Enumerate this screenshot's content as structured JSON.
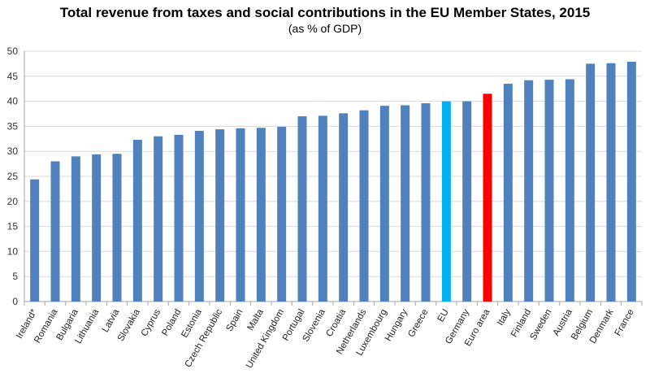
{
  "chart_data": {
    "type": "bar",
    "title": "Total revenue from taxes and social contributions in the EU Member States, 2015",
    "subtitle": "(as % of GDP)",
    "xlabel": "",
    "ylabel": "",
    "ylim": [
      0,
      50
    ],
    "yticks": [
      0,
      5,
      10,
      15,
      20,
      25,
      30,
      35,
      40,
      45,
      50
    ],
    "grid": true,
    "legend": "none",
    "categories": [
      "Ireland*",
      "Romania",
      "Bulgaria",
      "Lithuania",
      "Latvia",
      "Slovakia",
      "Cyprus",
      "Poland",
      "Estonia",
      "Czech Republic",
      "Spain",
      "Malta",
      "United Kingdom",
      "Portugal",
      "Slovenia",
      "Croatia",
      "Netherlands",
      "Luxembourg",
      "Hungary",
      "Greece",
      "EU",
      "Germany",
      "Euro area",
      "Italy",
      "Finland",
      "Sweden",
      "Austria",
      "Belgium",
      "Denmark",
      "France"
    ],
    "values": [
      24.4,
      28.0,
      29.0,
      29.4,
      29.5,
      32.3,
      33.0,
      33.3,
      34.1,
      34.4,
      34.6,
      34.7,
      34.9,
      37.0,
      37.1,
      37.6,
      38.2,
      39.1,
      39.2,
      39.6,
      40.0,
      40.0,
      41.5,
      43.5,
      44.2,
      44.3,
      44.4,
      47.5,
      47.6,
      47.9
    ],
    "colors": {
      "default": "#4F81BD",
      "EU": "#00B0F0",
      "Euro area": "#FF0000",
      "grid": "#D9D9D9",
      "axis": "#A6A6A6"
    }
  }
}
